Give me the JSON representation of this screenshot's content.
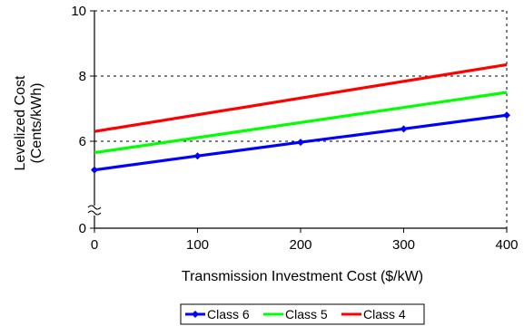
{
  "chart_data": {
    "type": "line",
    "title": "",
    "xlabel": "Transmission Investment Cost ($/kW)",
    "ylabel_lines": [
      "Levelized Cost",
      "(Cents/kWh)"
    ],
    "x_ticks": [
      0,
      100,
      200,
      300,
      400
    ],
    "y_ticks": [
      0,
      6,
      8,
      10
    ],
    "xlim": [
      0,
      400
    ],
    "ylim": [
      4.5,
      10
    ],
    "y_axis_break": true,
    "grid": "dotted horizontal at 6 and 8",
    "legend_position": "bottom-center",
    "series": [
      {
        "name": "Class 6",
        "color": "#0000ff",
        "markers": true,
        "x": [
          0,
          100,
          200,
          300,
          400
        ],
        "y": [
          5.12,
          5.55,
          5.97,
          6.38,
          6.8
        ]
      },
      {
        "name": "Class 5",
        "color": "#00ff00",
        "markers": false,
        "x": [
          0,
          400
        ],
        "y": [
          5.65,
          7.5
        ]
      },
      {
        "name": "Class 4",
        "color": "#ff0000",
        "markers": false,
        "x": [
          0,
          400
        ],
        "y": [
          6.3,
          8.35
        ]
      }
    ]
  }
}
